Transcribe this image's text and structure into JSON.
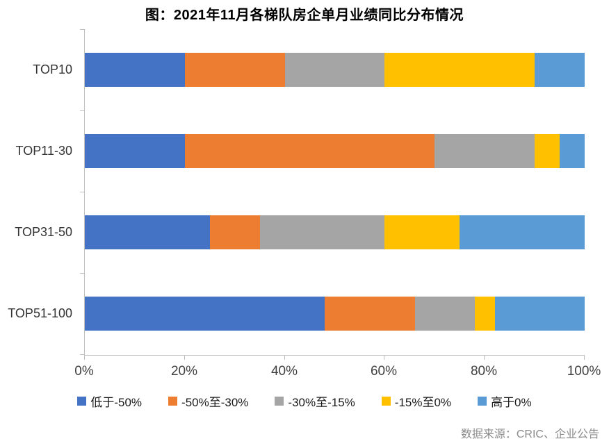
{
  "title": "图：2021年11月各梯队房企单月业绩同比分布情况",
  "source": "数据来源：CRIC、企业公告",
  "chart_data": {
    "type": "bar",
    "subtype": "horizontal-stacked-100",
    "title": "图：2021年11月各梯队房企单月业绩同比分布情况",
    "categories": [
      "TOP10",
      "TOP11-30",
      "TOP31-50",
      "TOP51-100"
    ],
    "series": [
      {
        "name": "低于-50%",
        "color": "#4472C4",
        "values": [
          20,
          20,
          25,
          48
        ]
      },
      {
        "name": "-50%至-30%",
        "color": "#ED7D31",
        "values": [
          20,
          50,
          10,
          18
        ]
      },
      {
        "name": "-30%至-15%",
        "color": "#A5A5A5",
        "values": [
          20,
          20,
          25,
          12
        ]
      },
      {
        "name": "-15%至0%",
        "color": "#FFC000",
        "values": [
          30,
          5,
          15,
          4
        ]
      },
      {
        "name": "高于0%",
        "color": "#5B9BD5",
        "values": [
          10,
          5,
          25,
          18
        ]
      }
    ],
    "x_ticks": [
      "0%",
      "20%",
      "40%",
      "60%",
      "80%",
      "100%"
    ],
    "xlim": [
      0,
      100
    ],
    "unit": "percent",
    "grid": false,
    "legend_position": "bottom",
    "axis_color": "#BFBFBF",
    "source": "数据来源：CRIC、企业公告"
  }
}
